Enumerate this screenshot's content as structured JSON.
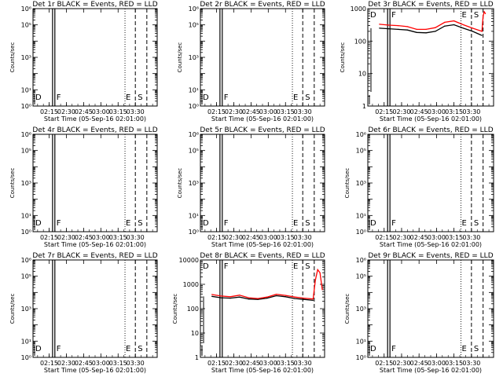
{
  "panels": [
    {
      "title": "Det 1r BLACK = Events, RED = LLD",
      "ylabel": "Counts/sec",
      "xlabel": "Start Time (05-Sep-16 02:01:00)",
      "yscale": "log",
      "ylim": [
        1,
        1000000
      ],
      "yticks": [
        {
          "v": 1,
          "label": "10⁰"
        },
        {
          "v": 10,
          "label": "10¹"
        },
        {
          "v": 1000,
          "label": "10³"
        },
        {
          "v": 100000,
          "label": "10⁵"
        },
        {
          "v": 1000000,
          "label": "10⁶"
        }
      ],
      "xticks": [
        "02:15",
        "02:30",
        "02:45",
        "03:00",
        "03:15",
        "03:30"
      ],
      "markers": [
        "D",
        "F",
        "E",
        "S"
      ],
      "has_data": false
    },
    {
      "title": "Det 2r BLACK = Events, RED = LLD",
      "ylabel": "Counts/sec",
      "xlabel": "Start Time (05-Sep-16 02:01:00)",
      "yscale": "log",
      "ylim": [
        1,
        1000000
      ],
      "yticks": [
        {
          "v": 1,
          "label": "10⁰"
        },
        {
          "v": 10,
          "label": "10¹"
        },
        {
          "v": 1000,
          "label": "10³"
        },
        {
          "v": 100000,
          "label": "10⁵"
        },
        {
          "v": 1000000,
          "label": "10⁶"
        }
      ],
      "xticks": [
        "02:15",
        "02:30",
        "02:45",
        "03:00",
        "03:15",
        "03:30"
      ],
      "markers": [
        "D",
        "F",
        "E",
        "S"
      ],
      "has_data": false
    },
    {
      "title": "Det 3r BLACK = Events, RED = LLD",
      "ylabel": "Counts/sec",
      "xlabel": "Start Time (05-Sep-16 02:01:00)",
      "yscale": "log",
      "ylim": [
        1,
        1000
      ],
      "yticks": [
        {
          "v": 1,
          "label": "1"
        },
        {
          "v": 10,
          "label": "10"
        },
        {
          "v": 100,
          "label": "100"
        },
        {
          "v": 1000,
          "label": "1000"
        }
      ],
      "xticks": [
        "02:15",
        "02:30",
        "02:45",
        "03:00",
        "03:15",
        "03:30"
      ],
      "markers": [
        "D",
        "F",
        "E",
        "S"
      ],
      "has_data": true
    },
    {
      "title": "Det 4r BLACK = Events, RED = LLD",
      "ylabel": "Counts/sec",
      "xlabel": "Start Time (05-Sep-16 02:01:00)",
      "yscale": "log",
      "ylim": [
        1,
        1000000
      ],
      "yticks": [
        {
          "v": 1,
          "label": "10⁰"
        },
        {
          "v": 10,
          "label": "10¹"
        },
        {
          "v": 1000,
          "label": "10³"
        },
        {
          "v": 100000,
          "label": "10⁵"
        },
        {
          "v": 1000000,
          "label": "10⁶"
        }
      ],
      "xticks": [
        "02:15",
        "02:30",
        "02:45",
        "03:00",
        "03:15",
        "03:30"
      ],
      "markers": [
        "D",
        "F",
        "E",
        "S"
      ],
      "has_data": false
    },
    {
      "title": "Det 5r BLACK = Events, RED = LLD",
      "ylabel": "Counts/sec",
      "xlabel": "Start Time (05-Sep-16 02:01:00)",
      "yscale": "log",
      "ylim": [
        1,
        1000000
      ],
      "yticks": [
        {
          "v": 1,
          "label": "10⁰"
        },
        {
          "v": 10,
          "label": "10¹"
        },
        {
          "v": 1000,
          "label": "10³"
        },
        {
          "v": 100000,
          "label": "10⁵"
        },
        {
          "v": 1000000,
          "label": "10⁶"
        }
      ],
      "xticks": [
        "02:15",
        "02:30",
        "02:45",
        "03:00",
        "03:15",
        "03:30"
      ],
      "markers": [
        "D",
        "F",
        "E",
        "S"
      ],
      "has_data": false
    },
    {
      "title": "Det 6r BLACK = Events, RED = LLD",
      "ylabel": "Counts/sec",
      "xlabel": "Start Time (05-Sep-16 02:01:00)",
      "yscale": "log",
      "ylim": [
        1,
        1000000
      ],
      "yticks": [
        {
          "v": 1,
          "label": "10⁰"
        },
        {
          "v": 10,
          "label": "10¹"
        },
        {
          "v": 1000,
          "label": "10³"
        },
        {
          "v": 100000,
          "label": "10⁵"
        },
        {
          "v": 1000000,
          "label": "10⁶"
        }
      ],
      "xticks": [
        "02:15",
        "02:30",
        "02:45",
        "03:00",
        "03:15",
        "03:30"
      ],
      "markers": [
        "D",
        "F",
        "E",
        "S"
      ],
      "has_data": false
    },
    {
      "title": "Det 7r BLACK = Events, RED = LLD",
      "ylabel": "Counts/sec",
      "xlabel": "Start Time (05-Sep-16 02:01:00)",
      "yscale": "log",
      "ylim": [
        1,
        1000000
      ],
      "yticks": [
        {
          "v": 1,
          "label": "10⁰"
        },
        {
          "v": 10,
          "label": "10¹"
        },
        {
          "v": 1000,
          "label": "10³"
        },
        {
          "v": 100000,
          "label": "10⁵"
        },
        {
          "v": 1000000,
          "label": "10⁶"
        }
      ],
      "xticks": [
        "02:15",
        "02:30",
        "02:45",
        "03:00",
        "03:15",
        "03:30"
      ],
      "markers": [
        "D",
        "F",
        "E",
        "S"
      ],
      "has_data": false
    },
    {
      "title": "Det 8r BLACK = Events, RED = LLD",
      "ylabel": "Counts/sec",
      "xlabel": "Start Time (05-Sep-16 02:01:00)",
      "yscale": "log",
      "ylim": [
        1,
        10000
      ],
      "yticks": [
        {
          "v": 1,
          "label": "1"
        },
        {
          "v": 10,
          "label": "10"
        },
        {
          "v": 100,
          "label": "100"
        },
        {
          "v": 1000,
          "label": "1000"
        },
        {
          "v": 10000,
          "label": "10000"
        }
      ],
      "xticks": [
        "02:15",
        "02:30",
        "02:45",
        "03:00",
        "03:15",
        "03:30"
      ],
      "markers": [
        "D",
        "F",
        "E",
        "S"
      ],
      "has_data": true
    },
    {
      "title": "Det 9r BLACK = Events, RED = LLD",
      "ylabel": "Counts/sec",
      "xlabel": "Start Time (05-Sep-16 02:01:00)",
      "yscale": "log",
      "ylim": [
        1,
        1000000
      ],
      "yticks": [
        {
          "v": 1,
          "label": "10⁰"
        },
        {
          "v": 10,
          "label": "10¹"
        },
        {
          "v": 1000,
          "label": "10³"
        },
        {
          "v": 100000,
          "label": "10⁵"
        },
        {
          "v": 1000000,
          "label": "10⁶"
        }
      ],
      "xticks": [
        "02:15",
        "02:30",
        "02:45",
        "03:00",
        "03:15",
        "03:30"
      ],
      "markers": [
        "D",
        "F",
        "E",
        "S"
      ],
      "has_data": false
    }
  ],
  "chart_data": [
    {
      "type": "line",
      "title": "Det 3r BLACK = Events, RED = LLD",
      "xlabel": "Start Time (05-Sep-16 02:01:00)",
      "ylabel": "Counts/sec",
      "yscale": "log",
      "ylim": [
        1,
        1000
      ],
      "x_unit": "minutes after 02:01:00",
      "series": [
        {
          "name": "Events",
          "color": "#000000",
          "x": [
            10,
            18,
            26,
            34,
            42,
            50,
            58,
            66,
            74,
            82,
            90,
            98
          ],
          "values": [
            250,
            240,
            230,
            220,
            185,
            180,
            200,
            290,
            320,
            250,
            200,
            150
          ]
        },
        {
          "name": "LLD",
          "color": "#ff0000",
          "x": [
            10,
            18,
            26,
            34,
            42,
            50,
            58,
            66,
            74,
            82,
            90,
            98,
            99,
            100,
            101
          ],
          "values": [
            330,
            310,
            300,
            280,
            230,
            230,
            260,
            380,
            420,
            320,
            250,
            200,
            600,
            800,
            700
          ]
        }
      ],
      "vlines": [
        {
          "label": "D",
          "style": "solid"
        },
        {
          "label": "F",
          "style": "solid"
        },
        {
          "label": "E",
          "style": "dotted"
        },
        {
          "label": "S",
          "style": "dashed"
        }
      ]
    },
    {
      "type": "line",
      "title": "Det 8r BLACK = Events, RED = LLD",
      "xlabel": "Start Time (05-Sep-16 02:01:00)",
      "ylabel": "Counts/sec",
      "yscale": "log",
      "ylim": [
        1,
        10000
      ],
      "x_unit": "minutes after 02:01:00",
      "series": [
        {
          "name": "Events",
          "color": "#000000",
          "x": [
            10,
            18,
            26,
            34,
            42,
            50,
            58,
            66,
            74,
            82,
            90,
            98
          ],
          "values": [
            320,
            280,
            270,
            300,
            250,
            240,
            270,
            340,
            310,
            260,
            240,
            220
          ]
        },
        {
          "name": "LLD",
          "color": "#ff0000",
          "x": [
            10,
            18,
            26,
            34,
            42,
            50,
            58,
            66,
            74,
            82,
            90,
            98,
            100,
            102,
            104,
            106
          ],
          "values": [
            380,
            330,
            310,
            360,
            280,
            260,
            300,
            390,
            350,
            300,
            270,
            250,
            1500,
            4000,
            3000,
            600
          ]
        }
      ],
      "vlines": [
        {
          "label": "D",
          "style": "solid"
        },
        {
          "label": "F",
          "style": "solid"
        },
        {
          "label": "E",
          "style": "dotted"
        },
        {
          "label": "S",
          "style": "dashed"
        }
      ]
    }
  ]
}
